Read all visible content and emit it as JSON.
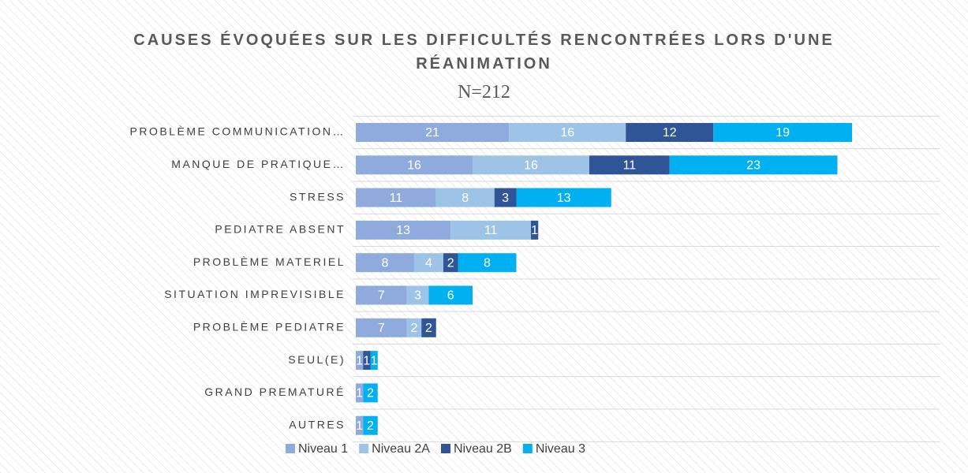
{
  "chart_data": {
    "type": "stacked_barh",
    "title": "CAUSES ÉVOQUÉES SUR LES DIFFICULTÉS RENCONTRÉES LORS D'UNE RÉANIMATION",
    "subtitle": "N=212",
    "categories": [
      "PROBLÈME COMMUNICATION…",
      "MANQUE DE PRATIQUE…",
      "STRESS",
      "PEDIATRE ABSENT",
      "PROBLÈME MATERIEL",
      "SITUATION IMPREVISIBLE",
      "PROBLÈME PEDIATRE",
      "SEUL(E)",
      "GRAND PREMATURÉ",
      "AUTRES"
    ],
    "series": [
      {
        "name": "Niveau 1",
        "color": "#8faadc",
        "values": [
          21,
          16,
          11,
          13,
          8,
          7,
          7,
          1,
          1,
          1
        ]
      },
      {
        "name": "Niveau 2A",
        "color": "#9dc3e6",
        "values": [
          16,
          16,
          8,
          11,
          4,
          3,
          2,
          null,
          null,
          null
        ]
      },
      {
        "name": "Niveau 2B",
        "color": "#2f5597",
        "values": [
          12,
          11,
          3,
          1,
          2,
          null,
          2,
          1,
          null,
          null
        ]
      },
      {
        "name": "Niveau 3",
        "color": "#00b0f0",
        "values": [
          19,
          23,
          13,
          null,
          8,
          6,
          null,
          1,
          2,
          2
        ]
      }
    ],
    "xlim": [
      0,
      80
    ],
    "legend": "bottom"
  }
}
